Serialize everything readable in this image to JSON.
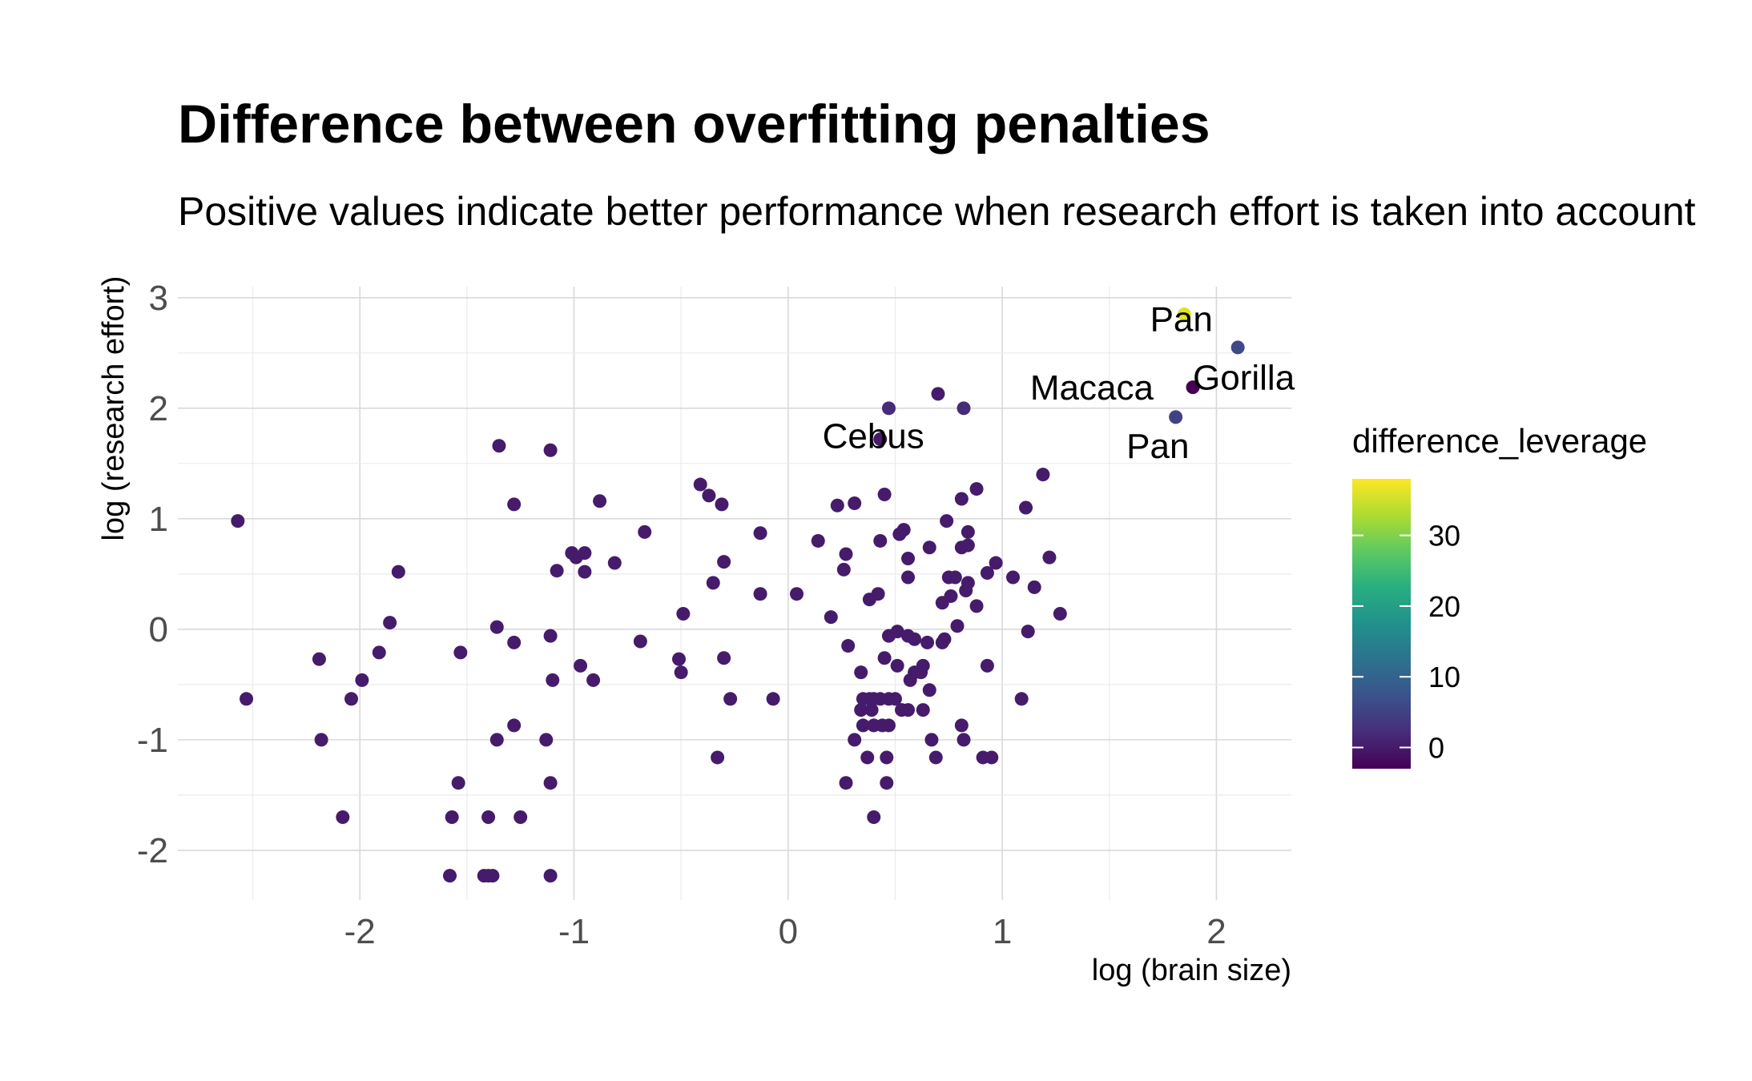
{
  "chart_data": {
    "type": "scatter",
    "title": "Difference between overfitting penalties",
    "subtitle": "Positive values indicate better performance when research effort is taken into account",
    "xlabel": "log (brain size)",
    "ylabel": "log (research effort)",
    "xlim": [
      -2.85,
      2.35
    ],
    "ylim": [
      -2.45,
      3.1
    ],
    "x_ticks": [
      -2,
      -1,
      0,
      1,
      2
    ],
    "y_ticks": [
      -2,
      -1,
      0,
      1,
      2,
      3
    ],
    "x_tick_labels": [
      "-2",
      "-1",
      "0",
      "1",
      "2"
    ],
    "y_tick_labels": [
      "-2",
      "-1",
      "0",
      "1",
      "2",
      "3"
    ],
    "grid": true,
    "legend": {
      "title": "difference_leverage",
      "placement": "right",
      "min": -3,
      "max": 38,
      "ticks": [
        0,
        10,
        20,
        30
      ],
      "tick_labels": [
        "0",
        "10",
        "20",
        "30"
      ]
    },
    "points": [
      {
        "x": -2.57,
        "y": 0.98,
        "c": 0
      },
      {
        "x": -2.53,
        "y": -0.63,
        "c": 0
      },
      {
        "x": -2.19,
        "y": -0.27,
        "c": 0
      },
      {
        "x": -2.18,
        "y": -1.0,
        "c": 0
      },
      {
        "x": -2.08,
        "y": -1.7,
        "c": 0
      },
      {
        "x": -2.04,
        "y": -0.63,
        "c": 0
      },
      {
        "x": -1.99,
        "y": -0.46,
        "c": 0
      },
      {
        "x": -1.91,
        "y": -0.21,
        "c": 0
      },
      {
        "x": -1.86,
        "y": 0.06,
        "c": 0
      },
      {
        "x": -1.82,
        "y": 0.52,
        "c": 0
      },
      {
        "x": -1.58,
        "y": -2.23,
        "c": 0
      },
      {
        "x": -1.57,
        "y": -1.7,
        "c": 0
      },
      {
        "x": -1.54,
        "y": -1.39,
        "c": 0
      },
      {
        "x": -1.53,
        "y": -0.21,
        "c": 0
      },
      {
        "x": -1.42,
        "y": -2.23,
        "c": 0
      },
      {
        "x": -1.4,
        "y": -2.23,
        "c": 0
      },
      {
        "x": -1.4,
        "y": -1.7,
        "c": 0
      },
      {
        "x": -1.38,
        "y": -2.23,
        "c": 0
      },
      {
        "x": -1.36,
        "y": 0.02,
        "c": 0
      },
      {
        "x": -1.36,
        "y": -1.0,
        "c": 0
      },
      {
        "x": -1.35,
        "y": 1.66,
        "c": 0
      },
      {
        "x": -1.28,
        "y": 1.13,
        "c": 0
      },
      {
        "x": -1.28,
        "y": -0.12,
        "c": 0
      },
      {
        "x": -1.28,
        "y": -0.87,
        "c": 0
      },
      {
        "x": -1.25,
        "y": -1.7,
        "c": 0
      },
      {
        "x": -1.13,
        "y": -1.0,
        "c": 0
      },
      {
        "x": -1.11,
        "y": -2.23,
        "c": 0
      },
      {
        "x": -1.11,
        "y": -1.39,
        "c": 0
      },
      {
        "x": -1.11,
        "y": -0.06,
        "c": 0
      },
      {
        "x": -1.11,
        "y": 1.62,
        "c": 0
      },
      {
        "x": -1.1,
        "y": -0.46,
        "c": 0
      },
      {
        "x": -1.08,
        "y": 0.53,
        "c": 0
      },
      {
        "x": -1.01,
        "y": 0.69,
        "c": 0
      },
      {
        "x": -0.99,
        "y": 0.65,
        "c": 0
      },
      {
        "x": -0.97,
        "y": -0.33,
        "c": 0
      },
      {
        "x": -0.95,
        "y": 0.52,
        "c": 0
      },
      {
        "x": -0.95,
        "y": 0.69,
        "c": 0
      },
      {
        "x": -0.91,
        "y": -0.46,
        "c": 0
      },
      {
        "x": -0.88,
        "y": 1.16,
        "c": 0
      },
      {
        "x": -0.81,
        "y": 0.6,
        "c": 0
      },
      {
        "x": -0.69,
        "y": -0.11,
        "c": 0
      },
      {
        "x": -0.67,
        "y": 0.88,
        "c": 0
      },
      {
        "x": -0.51,
        "y": -0.27,
        "c": 0
      },
      {
        "x": -0.5,
        "y": -0.39,
        "c": 0
      },
      {
        "x": -0.49,
        "y": 0.14,
        "c": 0
      },
      {
        "x": -0.41,
        "y": 1.31,
        "c": 0
      },
      {
        "x": -0.37,
        "y": 1.21,
        "c": 0
      },
      {
        "x": -0.35,
        "y": 0.42,
        "c": 0
      },
      {
        "x": -0.33,
        "y": -1.16,
        "c": 0
      },
      {
        "x": -0.31,
        "y": 1.13,
        "c": 0
      },
      {
        "x": -0.3,
        "y": 0.61,
        "c": 0
      },
      {
        "x": -0.3,
        "y": -0.26,
        "c": 0
      },
      {
        "x": -0.27,
        "y": -0.63,
        "c": 0
      },
      {
        "x": -0.13,
        "y": 0.32,
        "c": 0
      },
      {
        "x": -0.13,
        "y": 0.87,
        "c": 0
      },
      {
        "x": -0.07,
        "y": -0.63,
        "c": 0
      },
      {
        "x": 0.04,
        "y": 0.32,
        "c": 0
      },
      {
        "x": 0.14,
        "y": 0.8,
        "c": 0
      },
      {
        "x": 0.2,
        "y": 0.11,
        "c": 0
      },
      {
        "x": 0.23,
        "y": 1.12,
        "c": 0
      },
      {
        "x": 0.26,
        "y": 0.54,
        "c": 0
      },
      {
        "x": 0.27,
        "y": 0.68,
        "c": 0
      },
      {
        "x": 0.27,
        "y": -1.39,
        "c": 0
      },
      {
        "x": 0.28,
        "y": -0.15,
        "c": 0
      },
      {
        "x": 0.31,
        "y": 1.14,
        "c": 0
      },
      {
        "x": 0.31,
        "y": -1.0,
        "c": 0
      },
      {
        "x": 0.34,
        "y": -0.39,
        "c": 0
      },
      {
        "x": 0.34,
        "y": -0.73,
        "c": 0
      },
      {
        "x": 0.35,
        "y": -0.63,
        "c": 0
      },
      {
        "x": 0.35,
        "y": -0.87,
        "c": 0
      },
      {
        "x": 0.37,
        "y": -1.16,
        "c": 0
      },
      {
        "x": 0.38,
        "y": -0.63,
        "c": 0
      },
      {
        "x": 0.38,
        "y": 0.27,
        "c": 0
      },
      {
        "x": 0.39,
        "y": -0.73,
        "c": 0
      },
      {
        "x": 0.4,
        "y": -0.87,
        "c": 0
      },
      {
        "x": 0.4,
        "y": -0.63,
        "c": 0
      },
      {
        "x": 0.4,
        "y": -1.7,
        "c": 0
      },
      {
        "x": 0.42,
        "y": 0.32,
        "c": 0
      },
      {
        "x": 0.43,
        "y": 0.8,
        "c": 0
      },
      {
        "x": 0.43,
        "y": 1.72,
        "c": 0
      },
      {
        "x": 0.43,
        "y": -0.63,
        "c": 0
      },
      {
        "x": 0.44,
        "y": -0.87,
        "c": 0
      },
      {
        "x": 0.45,
        "y": 1.22,
        "c": 0
      },
      {
        "x": 0.45,
        "y": -0.26,
        "c": 0
      },
      {
        "x": 0.46,
        "y": -1.39,
        "c": 0
      },
      {
        "x": 0.46,
        "y": -1.16,
        "c": 0
      },
      {
        "x": 0.47,
        "y": -0.06,
        "c": 0
      },
      {
        "x": 0.47,
        "y": -0.87,
        "c": 0
      },
      {
        "x": 0.47,
        "y": -0.63,
        "c": 0
      },
      {
        "x": 0.47,
        "y": 2.0,
        "c": 2
      },
      {
        "x": 0.5,
        "y": -0.63,
        "c": 0
      },
      {
        "x": 0.51,
        "y": -0.33,
        "c": 0
      },
      {
        "x": 0.51,
        "y": -0.02,
        "c": 0
      },
      {
        "x": 0.52,
        "y": 0.86,
        "c": 0
      },
      {
        "x": 0.53,
        "y": -0.73,
        "c": 0
      },
      {
        "x": 0.54,
        "y": 0.9,
        "c": 0
      },
      {
        "x": 0.56,
        "y": -0.06,
        "c": 0
      },
      {
        "x": 0.56,
        "y": -0.73,
        "c": 0
      },
      {
        "x": 0.56,
        "y": 0.64,
        "c": 0
      },
      {
        "x": 0.56,
        "y": 0.47,
        "c": 0
      },
      {
        "x": 0.57,
        "y": -0.46,
        "c": 0
      },
      {
        "x": 0.59,
        "y": -0.09,
        "c": 0
      },
      {
        "x": 0.59,
        "y": -0.39,
        "c": 0
      },
      {
        "x": 0.62,
        "y": -0.39,
        "c": 0
      },
      {
        "x": 0.63,
        "y": -0.73,
        "c": 0
      },
      {
        "x": 0.63,
        "y": -0.33,
        "c": 0
      },
      {
        "x": 0.65,
        "y": -0.12,
        "c": 0
      },
      {
        "x": 0.66,
        "y": -0.55,
        "c": 0
      },
      {
        "x": 0.66,
        "y": 0.74,
        "c": 0
      },
      {
        "x": 0.67,
        "y": -1.0,
        "c": 0
      },
      {
        "x": 0.69,
        "y": -1.16,
        "c": 0
      },
      {
        "x": 0.7,
        "y": 2.13,
        "c": 0
      },
      {
        "x": 0.72,
        "y": -0.12,
        "c": 0
      },
      {
        "x": 0.72,
        "y": 0.24,
        "c": 0
      },
      {
        "x": 0.73,
        "y": -0.09,
        "c": 0
      },
      {
        "x": 0.74,
        "y": 0.98,
        "c": 0
      },
      {
        "x": 0.75,
        "y": 0.47,
        "c": 0
      },
      {
        "x": 0.76,
        "y": 0.3,
        "c": 0
      },
      {
        "x": 0.78,
        "y": 0.47,
        "c": 0
      },
      {
        "x": 0.79,
        "y": 0.03,
        "c": 0
      },
      {
        "x": 0.81,
        "y": 0.74,
        "c": 0
      },
      {
        "x": 0.81,
        "y": -0.87,
        "c": 0
      },
      {
        "x": 0.81,
        "y": 1.18,
        "c": 0
      },
      {
        "x": 0.82,
        "y": 2.0,
        "c": 2
      },
      {
        "x": 0.82,
        "y": -1.0,
        "c": 0
      },
      {
        "x": 0.83,
        "y": 0.35,
        "c": 0
      },
      {
        "x": 0.84,
        "y": 0.88,
        "c": 0
      },
      {
        "x": 0.84,
        "y": 0.76,
        "c": 0
      },
      {
        "x": 0.84,
        "y": 0.42,
        "c": 0
      },
      {
        "x": 0.88,
        "y": 1.27,
        "c": 0
      },
      {
        "x": 0.88,
        "y": 0.21,
        "c": 0
      },
      {
        "x": 0.91,
        "y": -1.16,
        "c": 0
      },
      {
        "x": 0.93,
        "y": 0.51,
        "c": 0
      },
      {
        "x": 0.93,
        "y": -0.33,
        "c": 0
      },
      {
        "x": 0.95,
        "y": -1.16,
        "c": 0
      },
      {
        "x": 0.97,
        "y": 0.6,
        "c": 0
      },
      {
        "x": 1.05,
        "y": 0.47,
        "c": 0
      },
      {
        "x": 1.09,
        "y": -0.63,
        "c": 0
      },
      {
        "x": 1.11,
        "y": 1.1,
        "c": 0
      },
      {
        "x": 1.12,
        "y": -0.02,
        "c": 0
      },
      {
        "x": 1.15,
        "y": 0.38,
        "c": 0
      },
      {
        "x": 1.19,
        "y": 1.4,
        "c": 0
      },
      {
        "x": 1.22,
        "y": 0.65,
        "c": 0
      },
      {
        "x": 1.27,
        "y": 0.14,
        "c": 0
      },
      {
        "x": 1.81,
        "y": 1.92,
        "c": 5
      },
      {
        "x": 1.85,
        "y": 2.85,
        "c": 36
      },
      {
        "x": 1.89,
        "y": 2.19,
        "c": -3
      },
      {
        "x": 2.1,
        "y": 2.55,
        "c": 6
      }
    ],
    "annotations": [
      {
        "text": "Pan",
        "x": 1.69,
        "y": 2.8
      },
      {
        "text": "Gorilla",
        "x": 1.89,
        "y": 2.27
      },
      {
        "text": "Macaca",
        "x": 1.13,
        "y": 2.18
      },
      {
        "text": "Cebus",
        "x": 0.16,
        "y": 1.74
      },
      {
        "text": "Pan",
        "x": 1.58,
        "y": 1.65
      }
    ]
  }
}
